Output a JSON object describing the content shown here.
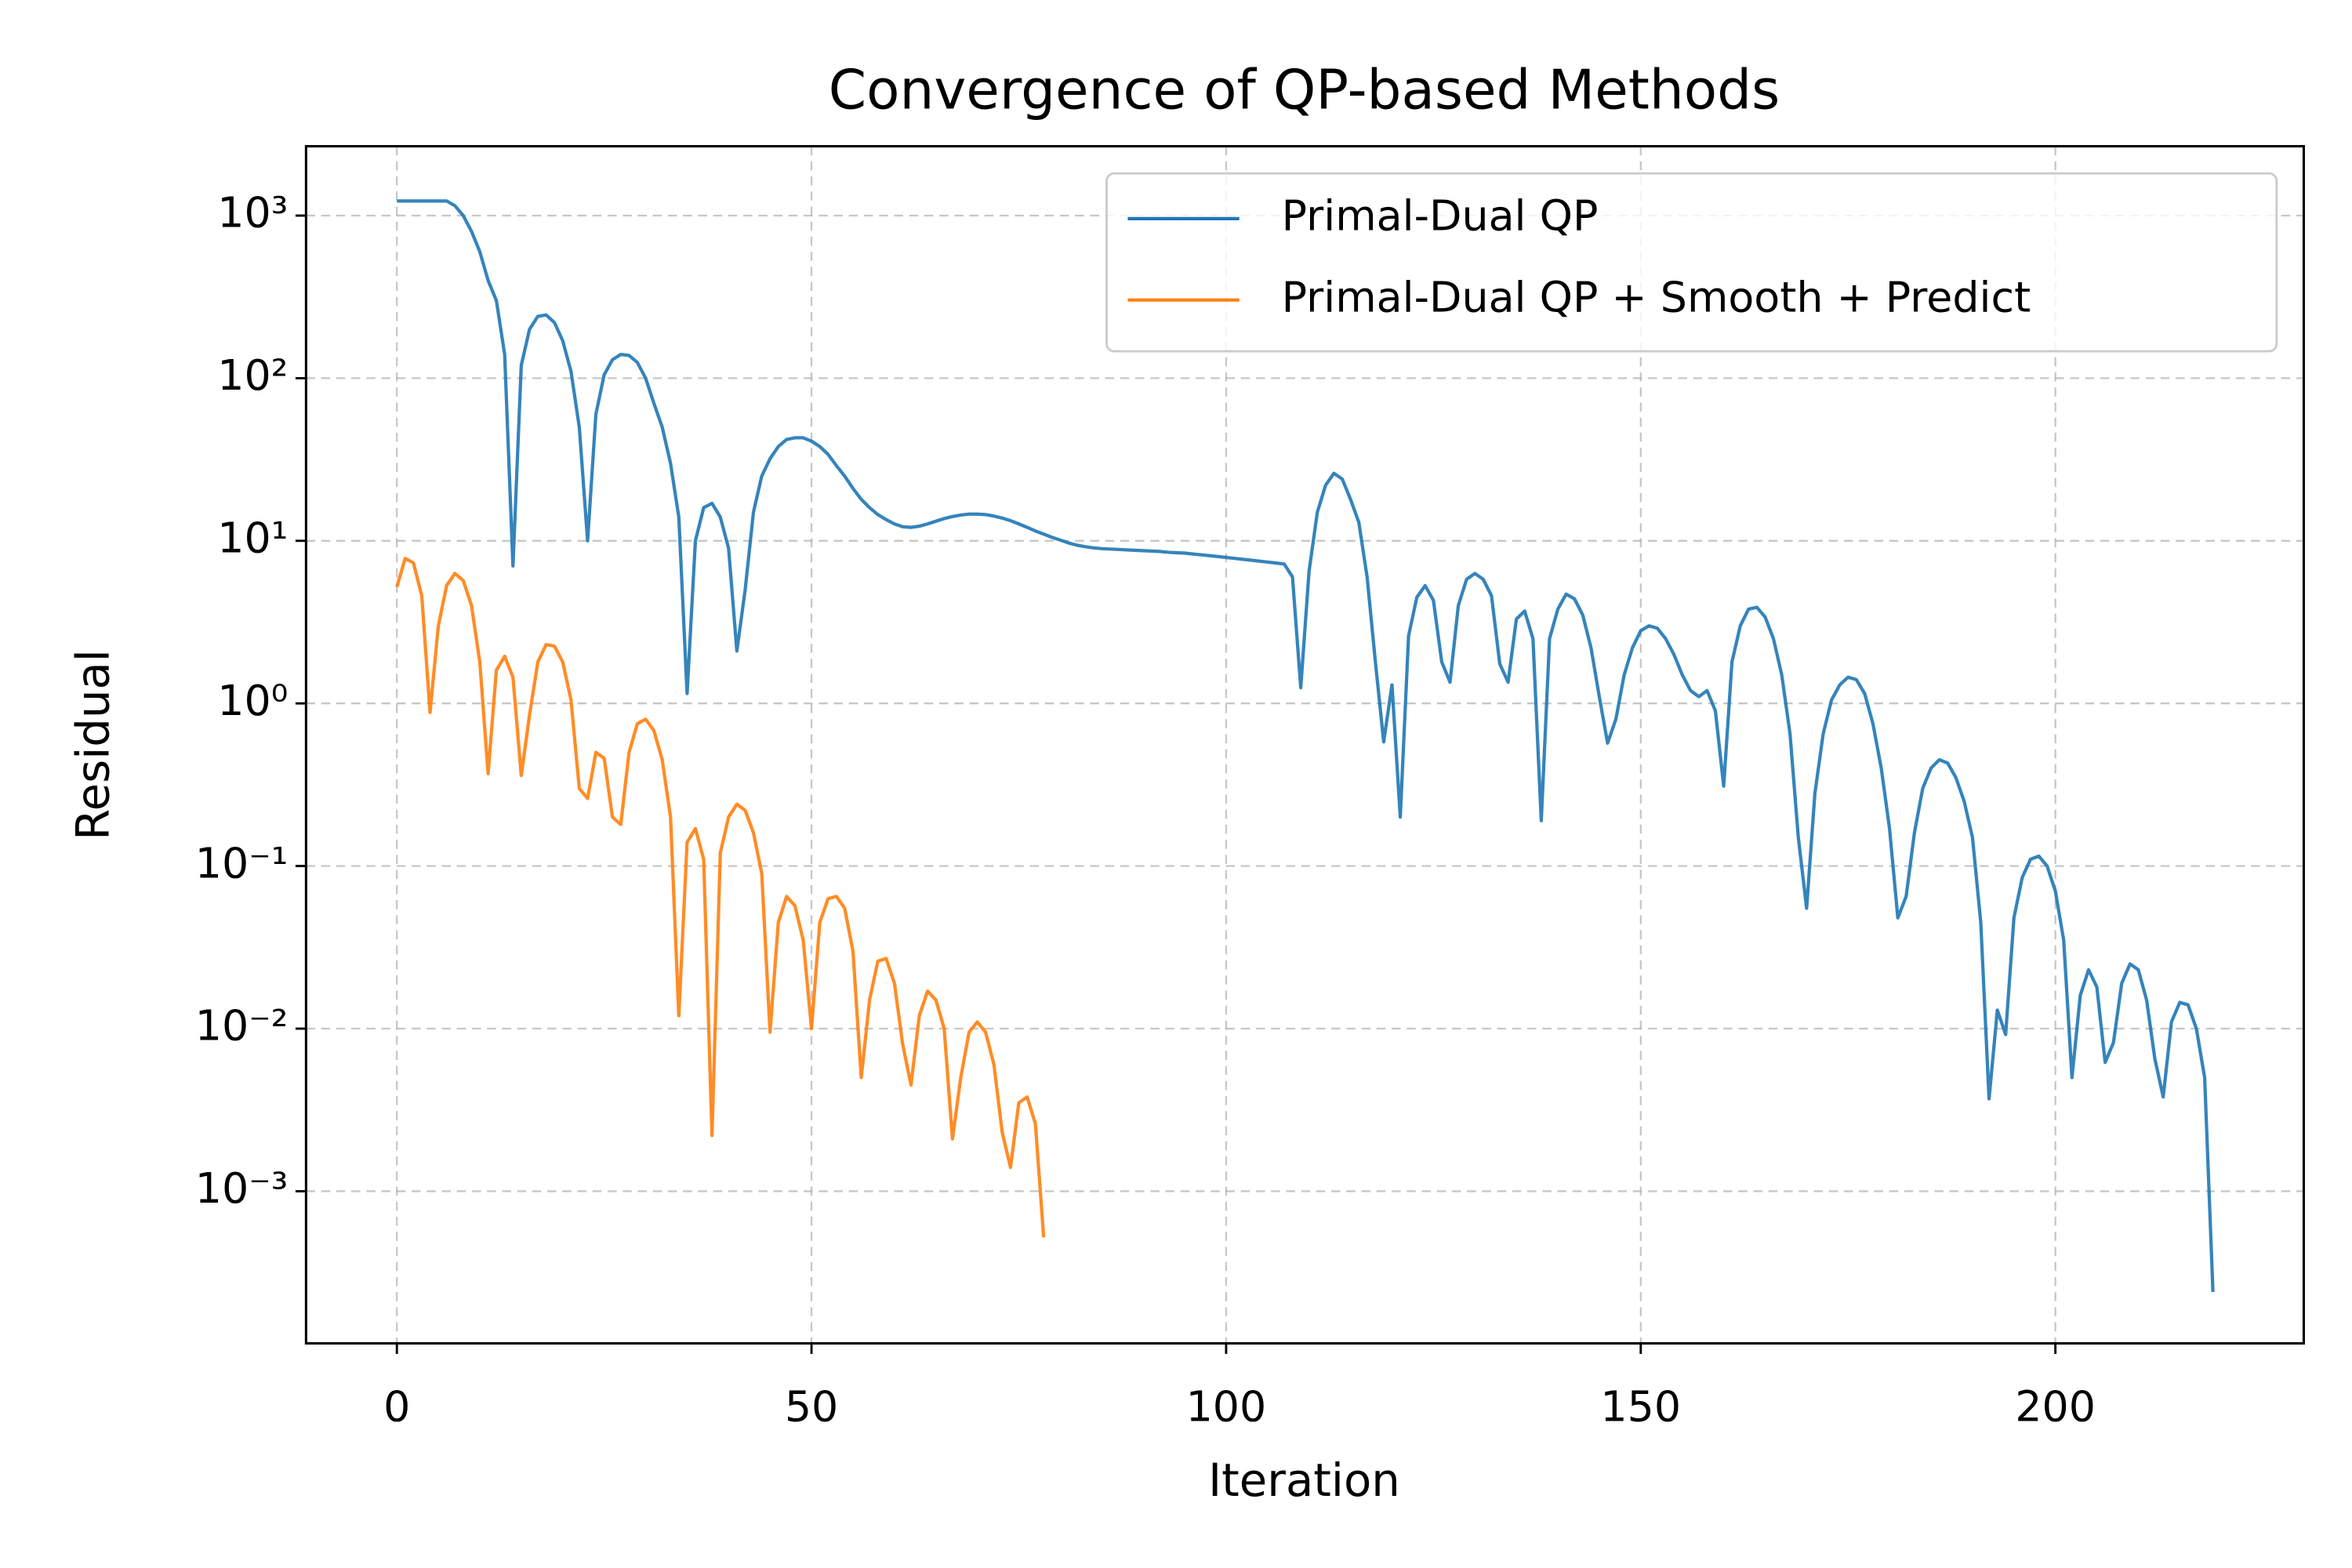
{
  "chart_data": {
    "type": "line",
    "title": "Convergence of QP-based Methods",
    "x_label": "Iteration",
    "y_label": "Residual",
    "log_y": true,
    "grid": true,
    "legend_loc": "upper right",
    "xlim": [
      -10.95,
      229.95
    ],
    "ylim": [
      0.000116,
      2670
    ],
    "xticks": [
      0,
      50,
      100,
      150,
      200
    ],
    "yticks": [
      {
        "value": 0.001,
        "label": "10⁻³"
      },
      {
        "value": 0.01,
        "label": "10⁻²"
      },
      {
        "value": 0.1,
        "label": "10⁻¹"
      },
      {
        "value": 1,
        "label": "10⁰"
      },
      {
        "value": 10,
        "label": "10¹"
      },
      {
        "value": 100,
        "label": "10²"
      },
      {
        "value": 1000,
        "label": "10³"
      }
    ],
    "series": [
      {
        "name": "Primal-Dual QP",
        "color": "#1f77b4",
        "x": [
          0,
          1,
          2,
          3,
          4,
          5,
          6,
          7,
          8,
          9,
          10,
          11,
          12,
          13,
          14,
          15,
          16,
          17,
          18,
          19,
          20,
          21,
          22,
          23,
          24,
          25,
          26,
          27,
          28,
          29,
          30,
          31,
          32,
          33,
          34,
          35,
          36,
          37,
          38,
          39,
          40,
          41,
          42,
          43,
          44,
          45,
          46,
          47,
          48,
          49,
          50,
          51,
          52,
          53,
          54,
          55,
          56,
          57,
          58,
          59,
          60,
          61,
          62,
          63,
          64,
          65,
          66,
          67,
          68,
          69,
          70,
          71,
          72,
          73,
          74,
          75,
          76,
          77,
          78,
          79,
          80,
          81,
          82,
          83,
          84,
          85,
          86,
          87,
          88,
          89,
          90,
          91,
          92,
          93,
          94,
          95,
          96,
          97,
          98,
          99,
          100,
          101,
          102,
          103,
          104,
          105,
          106,
          107,
          108,
          109,
          110,
          111,
          112,
          113,
          114,
          115,
          116,
          117,
          118,
          119,
          120,
          121,
          122,
          123,
          124,
          125,
          126,
          127,
          128,
          129,
          130,
          131,
          132,
          133,
          134,
          135,
          136,
          137,
          138,
          139,
          140,
          141,
          142,
          143,
          144,
          145,
          146,
          147,
          148,
          149,
          150,
          151,
          152,
          153,
          154,
          155,
          156,
          157,
          158,
          159,
          160,
          161,
          162,
          163,
          164,
          165,
          166,
          167,
          168,
          169,
          170,
          171,
          172,
          173,
          174,
          175,
          176,
          177,
          178,
          179,
          180,
          181,
          182,
          183,
          184,
          185,
          186,
          187,
          188,
          189,
          190,
          191,
          192,
          193,
          194,
          195,
          196,
          197,
          198,
          199,
          200,
          201,
          202,
          203,
          204,
          205,
          206,
          207,
          208,
          209,
          210,
          211,
          212,
          213,
          214,
          215,
          216,
          217,
          218,
          219
        ],
        "values": [
          1230,
          1230,
          1230,
          1230,
          1230,
          1230,
          1230,
          1150,
          1000,
          800,
          600,
          400,
          300,
          140,
          7,
          120,
          200,
          240,
          245,
          220,
          170,
          110,
          50,
          10,
          60,
          105,
          130,
          140,
          138,
          125,
          100,
          70,
          50,
          30,
          14,
          1.15,
          10,
          16,
          17,
          14,
          9,
          2.1,
          5,
          15,
          25,
          32,
          38,
          42,
          43,
          43,
          41,
          38,
          34,
          29,
          25,
          21,
          18,
          16,
          14.5,
          13.5,
          12.7,
          12.2,
          12.1,
          12.3,
          12.7,
          13.2,
          13.7,
          14.1,
          14.4,
          14.6,
          14.6,
          14.5,
          14.2,
          13.8,
          13.3,
          12.7,
          12.1,
          11.5,
          11,
          10.5,
          10.1,
          9.7,
          9.4,
          9.2,
          9.05,
          8.95,
          8.9,
          8.85,
          8.8,
          8.75,
          8.7,
          8.65,
          8.6,
          8.5,
          8.45,
          8.4,
          8.3,
          8.2,
          8.1,
          8,
          7.9,
          7.8,
          7.7,
          7.6,
          7.5,
          7.4,
          7.3,
          7.2,
          6,
          1.25,
          6.5,
          15,
          22,
          26,
          24,
          18,
          13,
          6,
          1.8,
          0.58,
          1.3,
          0.2,
          2.6,
          4.5,
          5.3,
          4.3,
          1.8,
          1.35,
          4,
          5.8,
          6.3,
          5.8,
          4.6,
          1.75,
          1.35,
          3.3,
          3.7,
          2.5,
          0.19,
          2.5,
          3.8,
          4.7,
          4.4,
          3.5,
          2.2,
          1.1,
          0.57,
          0.8,
          1.5,
          2.2,
          2.8,
          3,
          2.9,
          2.5,
          2,
          1.5,
          1.2,
          1.1,
          1.2,
          0.9,
          0.31,
          1.8,
          3,
          3.8,
          3.9,
          3.4,
          2.5,
          1.5,
          0.65,
          0.15,
          0.055,
          0.28,
          0.65,
          1.05,
          1.3,
          1.45,
          1.4,
          1.15,
          0.75,
          0.4,
          0.17,
          0.048,
          0.065,
          0.16,
          0.3,
          0.4,
          0.45,
          0.43,
          0.35,
          0.25,
          0.15,
          0.045,
          0.0037,
          0.013,
          0.0092,
          0.048,
          0.085,
          0.11,
          0.115,
          0.1,
          0.07,
          0.035,
          0.005,
          0.016,
          0.023,
          0.018,
          0.0062,
          0.0082,
          0.019,
          0.025,
          0.023,
          0.015,
          0.0065,
          0.0038,
          0.011,
          0.0145,
          0.014,
          0.01,
          0.005,
          0.00024
        ]
      },
      {
        "name": "Primal-Dual QP + Smooth + Predict",
        "color": "#ff7f0e",
        "x": [
          0,
          1,
          2,
          3,
          4,
          5,
          6,
          7,
          8,
          9,
          10,
          11,
          12,
          13,
          14,
          15,
          16,
          17,
          18,
          19,
          20,
          21,
          22,
          23,
          24,
          25,
          26,
          27,
          28,
          29,
          30,
          31,
          32,
          33,
          34,
          35,
          36,
          37,
          38,
          39,
          40,
          41,
          42,
          43,
          44,
          45,
          46,
          47,
          48,
          49,
          50,
          51,
          52,
          53,
          54,
          55,
          56,
          57,
          58,
          59,
          60,
          61,
          62,
          63,
          64,
          65,
          66,
          67,
          68,
          69,
          70,
          71,
          72,
          73,
          74,
          75,
          76,
          77,
          78
        ],
        "values": [
          5.2,
          7.8,
          7.3,
          4.6,
          0.88,
          3,
          5.3,
          6.3,
          5.7,
          4,
          1.8,
          0.37,
          1.6,
          1.95,
          1.45,
          0.36,
          0.85,
          1.8,
          2.3,
          2.25,
          1.8,
          1.05,
          0.3,
          0.26,
          0.5,
          0.46,
          0.2,
          0.18,
          0.5,
          0.75,
          0.8,
          0.68,
          0.45,
          0.2,
          0.012,
          0.14,
          0.17,
          0.11,
          0.0022,
          0.12,
          0.2,
          0.24,
          0.22,
          0.16,
          0.09,
          0.0095,
          0.045,
          0.065,
          0.057,
          0.035,
          0.01,
          0.045,
          0.063,
          0.065,
          0.055,
          0.03,
          0.005,
          0.015,
          0.026,
          0.027,
          0.019,
          0.008,
          0.0045,
          0.012,
          0.017,
          0.015,
          0.01,
          0.0021,
          0.005,
          0.0095,
          0.011,
          0.0095,
          0.006,
          0.0023,
          0.0014,
          0.0035,
          0.0038,
          0.0026,
          0.00052
        ]
      }
    ]
  }
}
